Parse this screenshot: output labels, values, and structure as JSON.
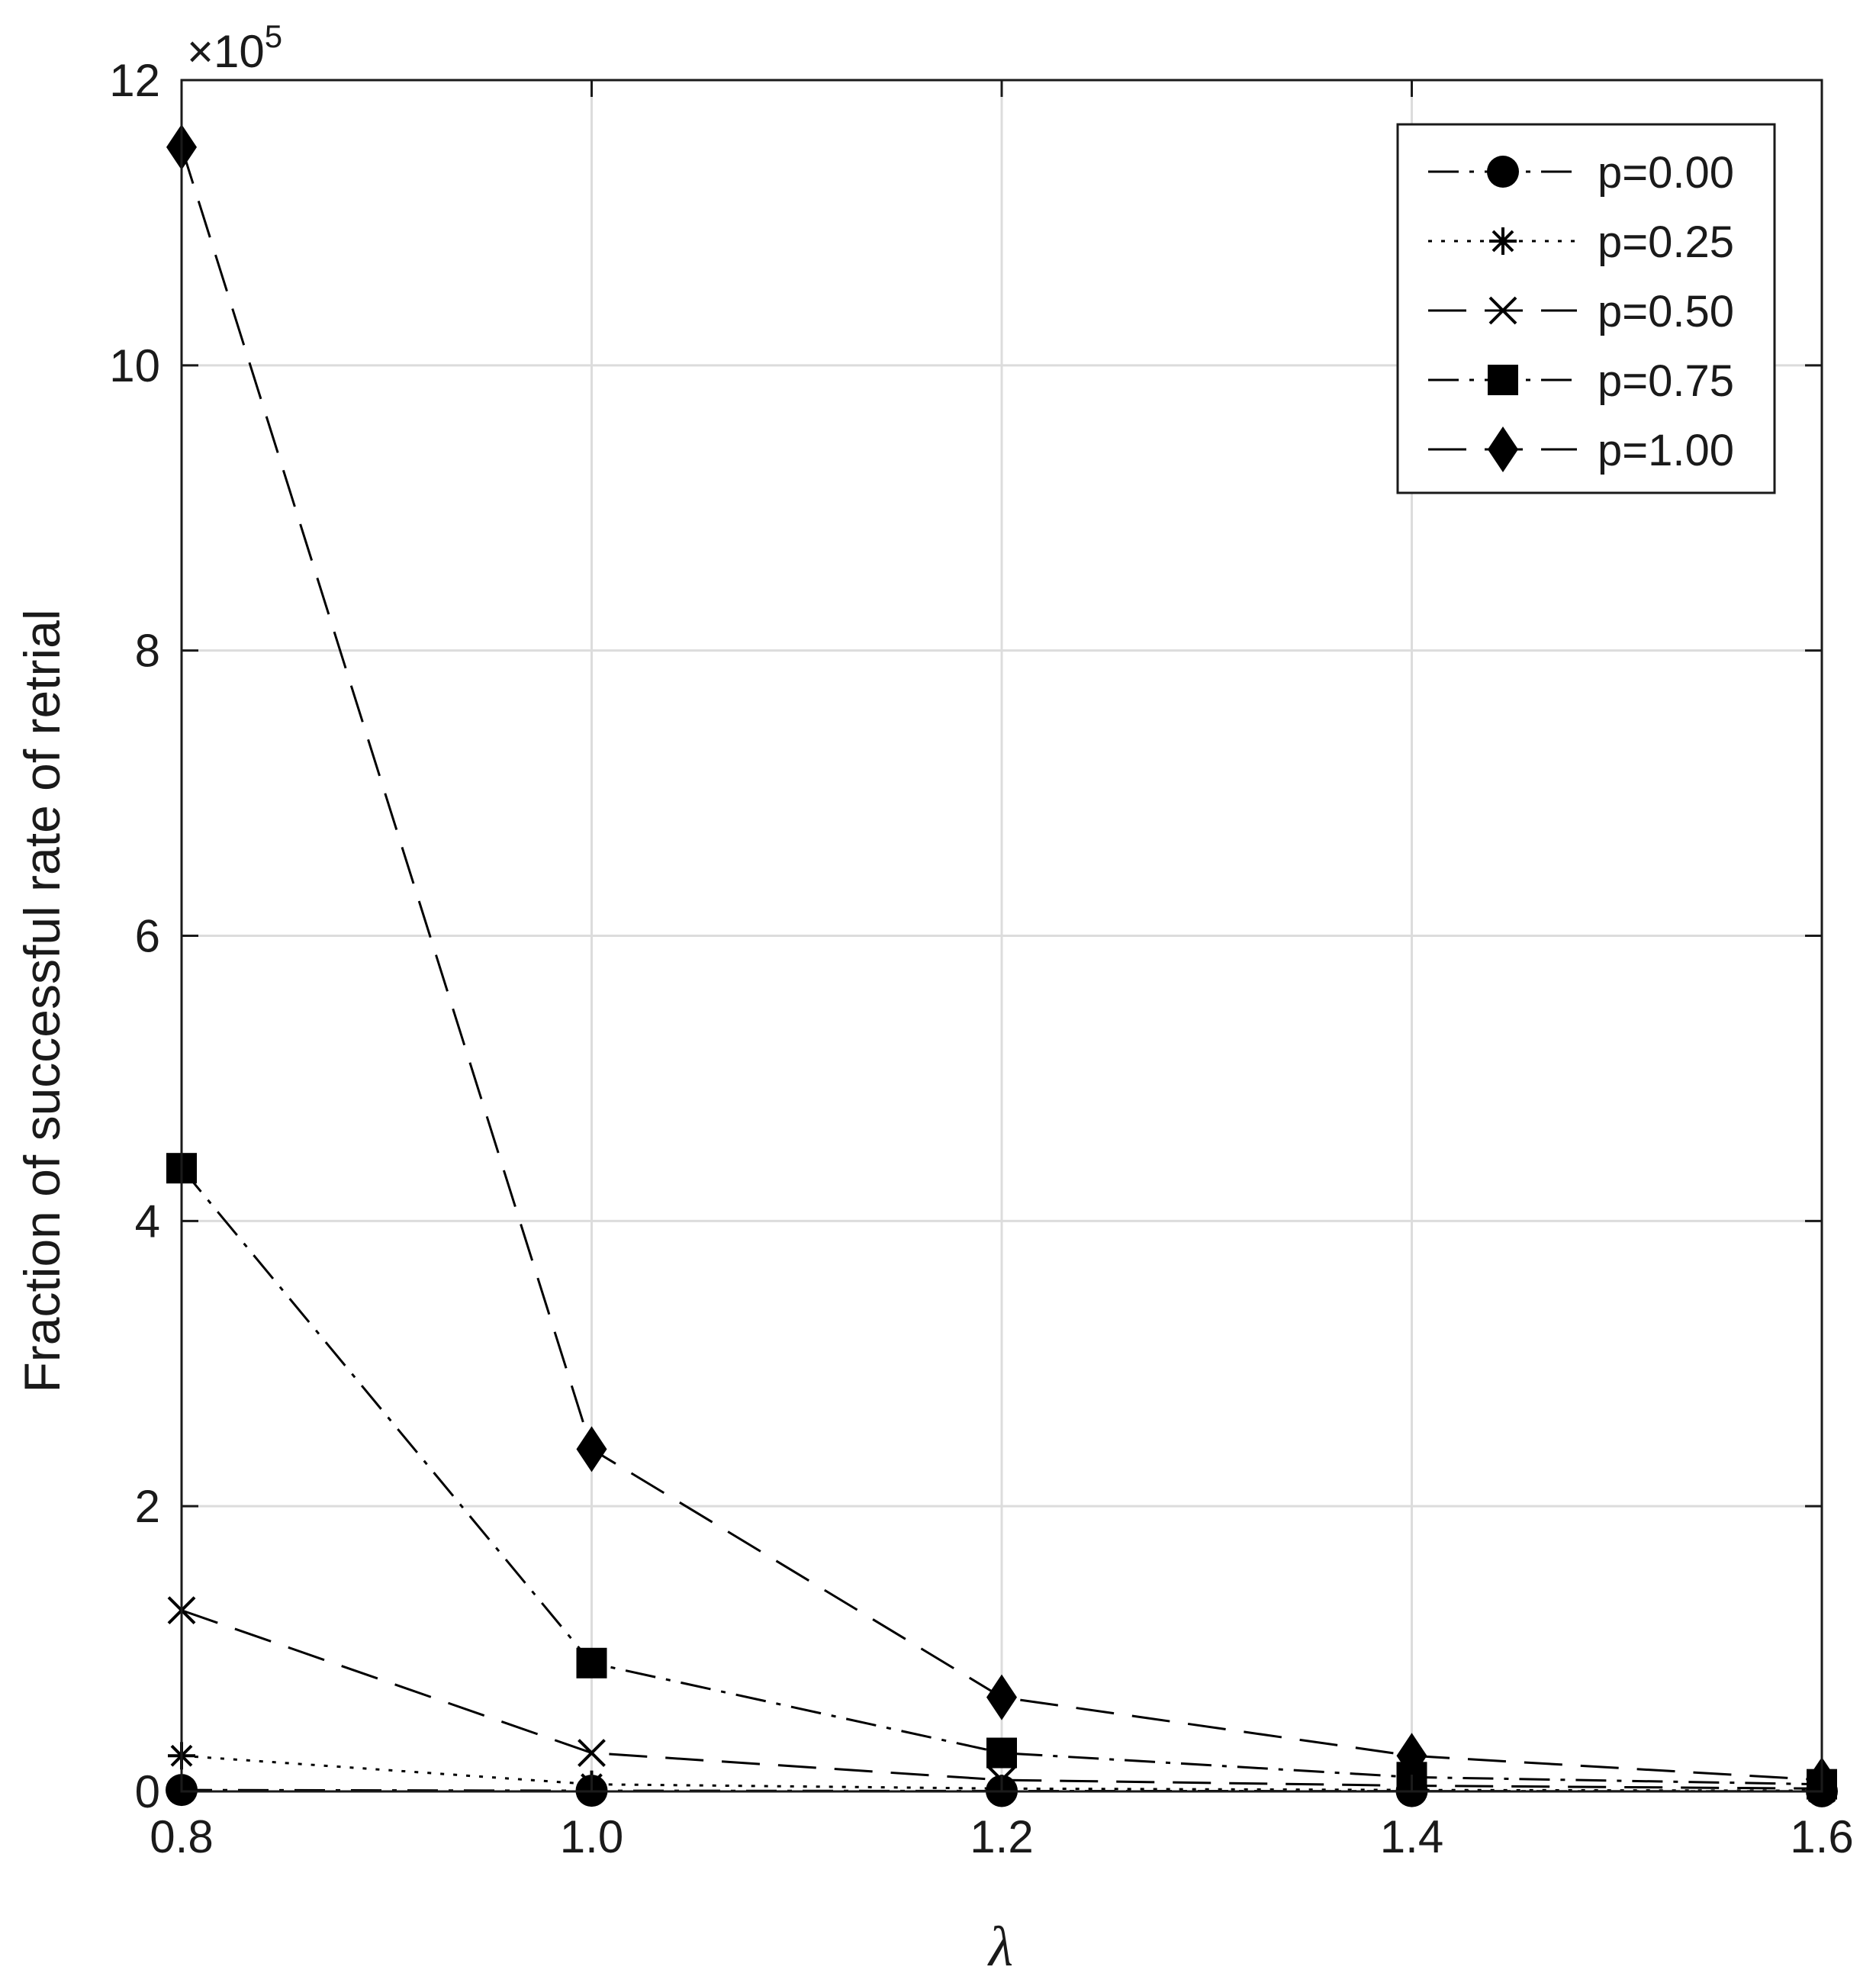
{
  "chart_data": {
    "type": "line",
    "xlabel": "λ",
    "ylabel": "Fraction of successful rate of retrial",
    "y_exponent": {
      "base": "×10",
      "power": "5"
    },
    "x": [
      0.8,
      1.0,
      1.2,
      1.4,
      1.6
    ],
    "x_tick_labels": [
      "0.8",
      "1.0",
      "1.2",
      "1.4",
      "1.6"
    ],
    "xlim": [
      0.8,
      1.6
    ],
    "y_ticks": [
      0,
      2,
      4,
      6,
      8,
      10,
      12
    ],
    "y_tick_labels": [
      "0",
      "2",
      "4",
      "6",
      "8",
      "10",
      "12"
    ],
    "ylim": [
      0,
      12
    ],
    "grid": true,
    "legend_position": "top-right",
    "series": [
      {
        "name": "p=0.00",
        "values": [
          0.01,
          0.005,
          0.003,
          0.002,
          0.001
        ],
        "marker": "circle",
        "dash": "dash-dot"
      },
      {
        "name": "p=0.25",
        "values": [
          0.25,
          0.05,
          0.02,
          0.01,
          0.005
        ],
        "marker": "asterisk",
        "dash": "dotted"
      },
      {
        "name": "p=0.50",
        "values": [
          1.27,
          0.27,
          0.08,
          0.04,
          0.02
        ],
        "marker": "x",
        "dash": "dashed"
      },
      {
        "name": "p=0.75",
        "values": [
          4.37,
          0.9,
          0.27,
          0.1,
          0.05
        ],
        "marker": "square",
        "dash": "dash-dot"
      },
      {
        "name": "p=1.00",
        "values": [
          11.53,
          2.4,
          0.66,
          0.25,
          0.08
        ],
        "marker": "diamond",
        "dash": "dashed"
      }
    ]
  }
}
